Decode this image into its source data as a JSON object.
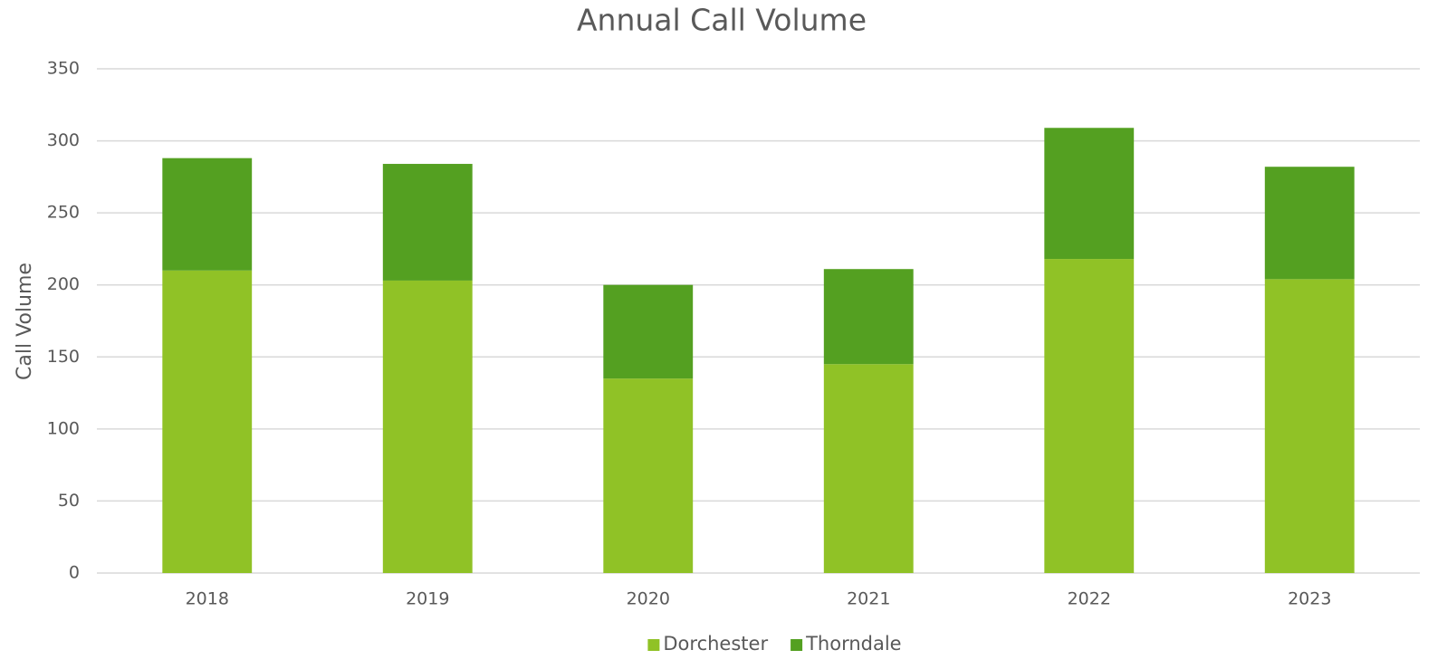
{
  "chart_data": {
    "type": "stacked_bar",
    "title": "Annual Call Volume",
    "y_label": "Call Volume",
    "categories": [
      "2018",
      "2019",
      "2020",
      "2021",
      "2022",
      "2023"
    ],
    "series": [
      {
        "name": "Dorchester",
        "color": "#90c226",
        "values": [
          210,
          203,
          135,
          145,
          218,
          204
        ]
      },
      {
        "name": "Thorndale",
        "color": "#54a021",
        "values": [
          78,
          81,
          65,
          66,
          91,
          78
        ]
      }
    ],
    "ylim": [
      0,
      350
    ],
    "yticks": [
      0,
      50,
      100,
      150,
      200,
      250,
      300,
      350
    ],
    "grid": true,
    "legend": "bottom"
  }
}
